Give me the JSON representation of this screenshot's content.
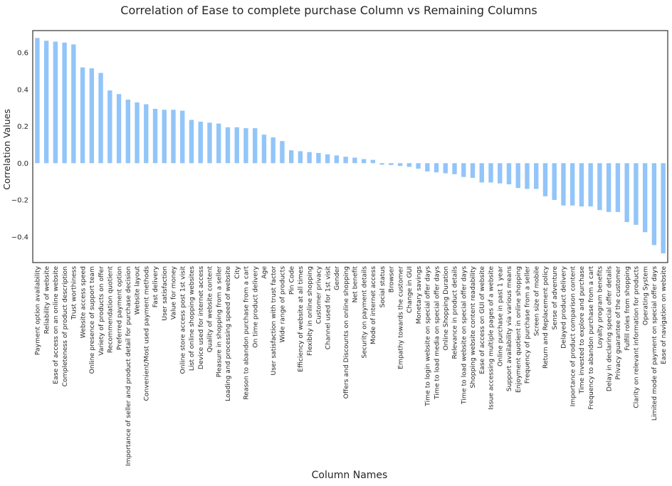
{
  "chart_data": {
    "type": "bar",
    "title": "Correlation of Ease to complete purchase Column vs Remaining Columns",
    "xlabel": "Column Names",
    "ylabel": "Correlation Values",
    "ylim": [
      -0.54,
      0.72
    ],
    "yticks": [
      -0.4,
      -0.2,
      0.0,
      0.2,
      0.4,
      0.6
    ],
    "ytick_labels": [
      "−0.4",
      "−0.2",
      "0.0",
      "0.2",
      "0.4",
      "0.6"
    ],
    "grid": false,
    "bar_color": "#92c5f9",
    "categories": [
      "Payment option availability",
      "Reliability of website",
      "Ease of access on an online website",
      "Completeness of product description",
      "Trust worthiness",
      "Website access speed",
      "Online presence of support team",
      "Variety of products on offer",
      "Recommendation quotient",
      "Preferred payment option",
      "Importance of seller and product detail for purchase decision",
      "Website layout",
      "Convenient/Most used payment methods",
      "Fast delivery",
      "User satisfaction",
      "Value for money",
      "Online store access post 1st visit",
      "List of online shopping websites",
      "Device used for internet access",
      "Quality of website content",
      "Pleasure in shopping from a seller",
      "Loading and processing speed of website",
      "City",
      "Reason to abandon purchase from a cart",
      "On time product delivery",
      "Age",
      "User satisfaction with trust factor",
      "Wide range of products",
      "Pin Code",
      "Efficiency of website at all times",
      "Flexibity in online shopping",
      "Customer privacy",
      "Channel used for 1st visit",
      "Gender",
      "Offers and Discounts on online shopping",
      "Net benefit",
      "Security on payment details",
      "Mode of internet access",
      "Social status",
      "Browser",
      "Empathy towards the customer",
      "Change in GUI",
      "Monetary savings",
      "Time to login website on special offer days",
      "Time to load media on special offer days",
      "Online Shopping Duration",
      "Relevance in product details",
      "Time to load website on special offer days",
      "Shopping website content readability",
      "Ease of access on GUI of website",
      "Issue accessing multiple pages of a website",
      "Online purchase in past 1 year",
      "Support availability via various means",
      "Enjoyment quotient in online shopping",
      "Frequency of purchase from a seller",
      "Screen size of mobile",
      "Return and Replacement policy",
      "Sense of adventure",
      "Delayed product delivery",
      "Importance of product comparison content",
      "Time invested to explore and purchase",
      "Frequency to abandon purchase from a cart",
      "Loyalty program benefits",
      "Delay in declaring special offer details",
      "Privacy guarantee of the customer",
      "Fulfill roles from shopping",
      "Clarity on relevant information for products",
      "Operating System",
      "Limited mode of payment on special offer days",
      "Ease of navigation on website"
    ],
    "values": [
      0.68,
      0.665,
      0.66,
      0.655,
      0.645,
      0.52,
      0.515,
      0.49,
      0.395,
      0.375,
      0.345,
      0.33,
      0.32,
      0.295,
      0.29,
      0.29,
      0.285,
      0.235,
      0.225,
      0.22,
      0.215,
      0.195,
      0.195,
      0.19,
      0.19,
      0.155,
      0.14,
      0.12,
      0.07,
      0.065,
      0.06,
      0.055,
      0.048,
      0.042,
      0.035,
      0.03,
      0.022,
      0.018,
      -0.008,
      -0.01,
      -0.015,
      -0.02,
      -0.03,
      -0.045,
      -0.05,
      -0.055,
      -0.06,
      -0.075,
      -0.08,
      -0.105,
      -0.105,
      -0.11,
      -0.115,
      -0.135,
      -0.14,
      -0.14,
      -0.18,
      -0.2,
      -0.23,
      -0.23,
      -0.235,
      -0.235,
      -0.255,
      -0.265,
      -0.265,
      -0.32,
      -0.335,
      -0.375,
      -0.445,
      -0.49
    ]
  }
}
